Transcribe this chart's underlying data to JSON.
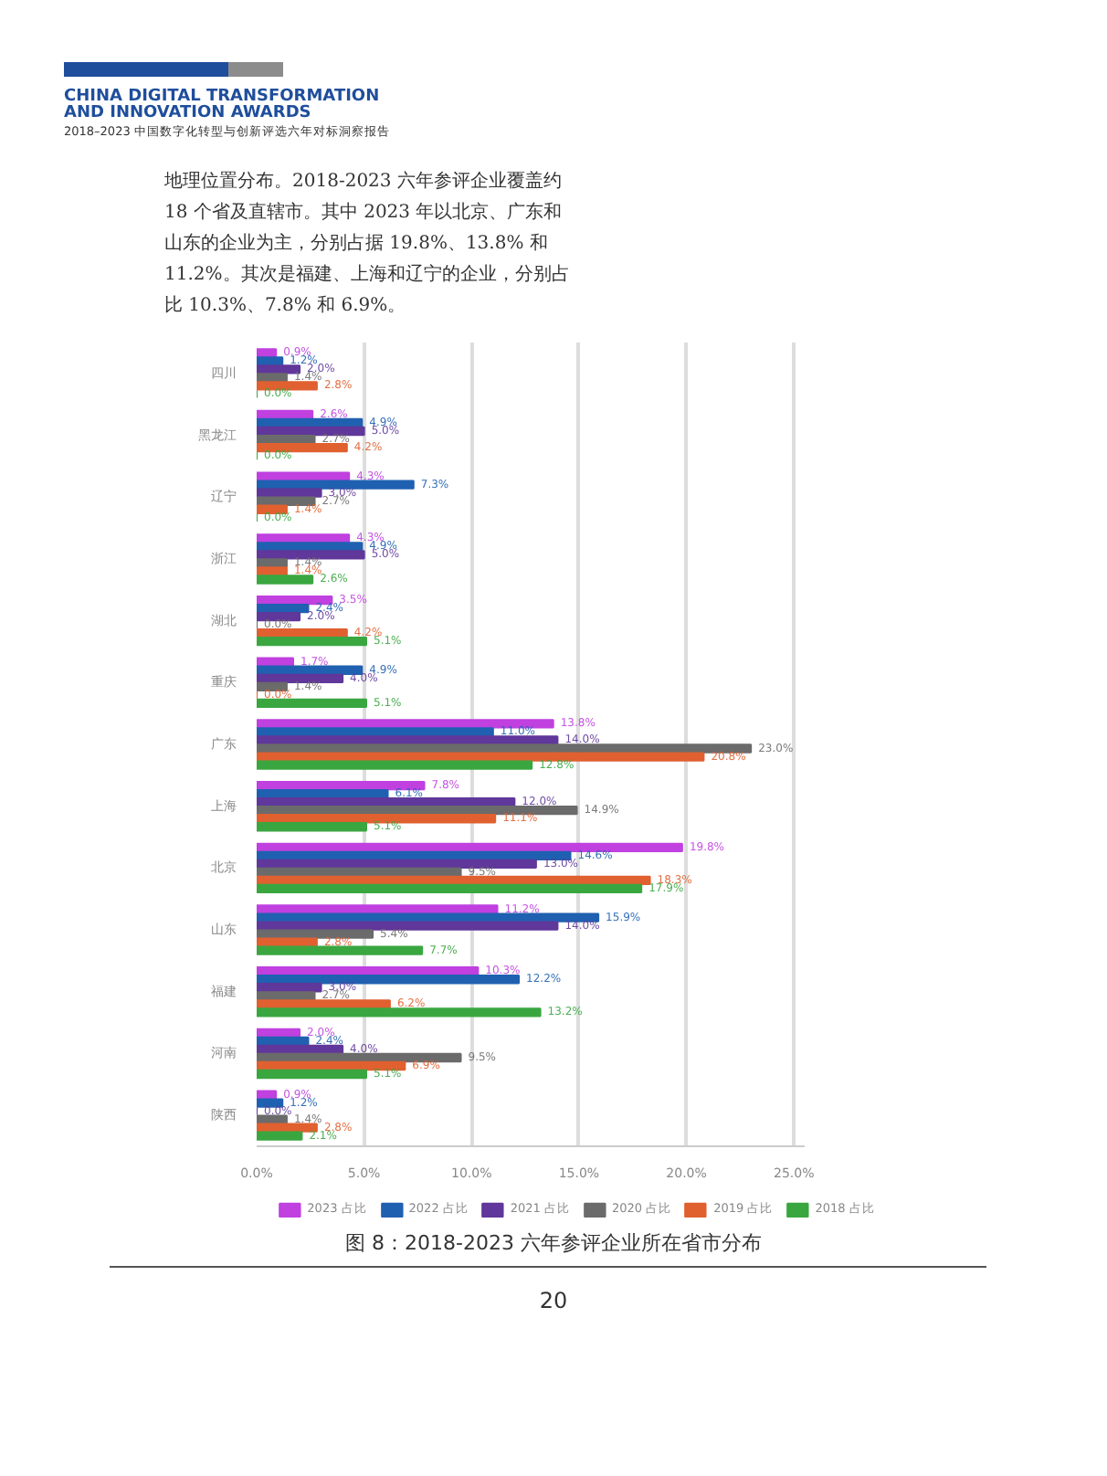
{
  "chart_data": {
    "type": "bar",
    "orientation": "horizontal",
    "title": "图 8：2018-2023 六年参评企业所在省市分布",
    "annotations": [
      "CHINA DIGITAL TRANSFORMATION\nAND INNOVATION AWARDS",
      "2018–2023 中国数字化转型与创新评选六年对标洞察报告",
      "地理位置分布。2018-2023 六年参评企业覆盖约 18 个省及直辖市。其中 2023 年以北京、广东和山东的企业为主，分别占据 19.8%、13.8% 和 11.2%。其次是福建、上海和辽宁的企业，分别占比 10.3%、7.8% 和 6.9%。",
      "20"
    ],
    "categories": [
      "四川",
      "黑龙江",
      "辽宁",
      "浙江",
      "湖北",
      "重庆",
      "广东",
      "上海",
      "北京",
      "山东",
      "福建",
      "河南",
      "陕西"
    ],
    "series": [
      {
        "name": "2023 占比",
        "color": "#c040e0",
        "values": [
          0.9,
          2.6,
          4.3,
          4.3,
          3.5,
          1.7,
          13.8,
          7.8,
          19.8,
          11.2,
          10.3,
          2.0,
          0.9
        ],
        "value_labels": [
          "0.9%",
          "2.6%",
          "4.3%",
          "4.3%",
          "3.5%",
          "1.7%",
          "13.8%",
          "7.8%",
          "19.8%",
          "11.2%",
          "10.3%",
          "2.0%",
          "0.9%"
        ]
      },
      {
        "name": "2022 占比",
        "color": "#2060b0",
        "values": [
          1.2,
          4.9,
          7.3,
          4.9,
          2.4,
          4.9,
          11.0,
          6.1,
          14.6,
          15.9,
          12.2,
          2.4,
          1.2
        ],
        "value_labels": [
          "1.2%",
          "4.9%",
          "7.3%",
          "4.9%",
          "2.4%",
          "4.9%",
          "11.0%",
          "6.1%",
          "14.6%",
          "15.9%",
          "12.2%",
          "2.4%",
          "1.2%"
        ]
      },
      {
        "name": "2021 占比",
        "color": "#60379a",
        "values": [
          2.0,
          5.0,
          3.0,
          5.0,
          2.0,
          4.0,
          14.0,
          12.0,
          13.0,
          14.0,
          3.0,
          4.0,
          0.0
        ],
        "value_labels": [
          "2.0%",
          "5.0%",
          "3.0%",
          "5.0%",
          "2.0%",
          "4.0%",
          "14.0%",
          "12.0%",
          "13.0%",
          "14.0%",
          "3.0%",
          "4.0%",
          "0.0%"
        ]
      },
      {
        "name": "2020 占比",
        "color": "#6b6b6b",
        "values": [
          1.4,
          2.7,
          2.7,
          1.4,
          0.0,
          1.4,
          23.0,
          14.9,
          9.5,
          5.4,
          2.7,
          9.5,
          1.4
        ],
        "value_labels": [
          "1.4%",
          "2.7%",
          "2.7%",
          "1.4%",
          "0.0%",
          "1.4%",
          "23.0%",
          "14.9%",
          "9.5%",
          "5.4%",
          "2.7%",
          "9.5%",
          "1.4%"
        ]
      },
      {
        "name": "2019 占比",
        "color": "#e06030",
        "values": [
          2.8,
          4.2,
          1.4,
          1.4,
          4.2,
          0.0,
          20.8,
          11.1,
          18.3,
          2.8,
          6.2,
          6.9,
          2.8
        ],
        "value_labels": [
          "2.8%",
          "4.2%",
          "1.4%",
          "1.4%",
          "4.2%",
          "0.0%",
          "20.8%",
          "11.1%",
          "18.3%",
          "2.8%",
          "6.2%",
          "6.9%",
          "2.8%"
        ]
      },
      {
        "name": "2018 占比",
        "color": "#3aa640",
        "values": [
          0.0,
          0.0,
          0.0,
          2.6,
          5.1,
          5.1,
          12.8,
          5.1,
          17.9,
          7.7,
          13.2,
          5.1,
          2.1
        ],
        "value_labels": [
          "0.0%",
          "0.0%",
          "0.0%",
          "2.6%",
          "5.1%",
          "5.1%",
          "12.8%",
          "5.1%",
          "17.9%",
          "7.7%",
          "13.2%",
          "5.1%",
          "2.1%"
        ]
      }
    ],
    "xlim": [
      0,
      25.5
    ],
    "xticks": [
      {
        "value": 0,
        "label": "0.0%"
      },
      {
        "value": 5,
        "label": "5.0%"
      },
      {
        "value": 10,
        "label": "10.0%"
      },
      {
        "value": 15,
        "label": "15.0%"
      },
      {
        "value": 20,
        "label": "20.0%"
      },
      {
        "value": 25,
        "label": "25.0%"
      }
    ],
    "grid": "x",
    "legend": "bottom"
  }
}
